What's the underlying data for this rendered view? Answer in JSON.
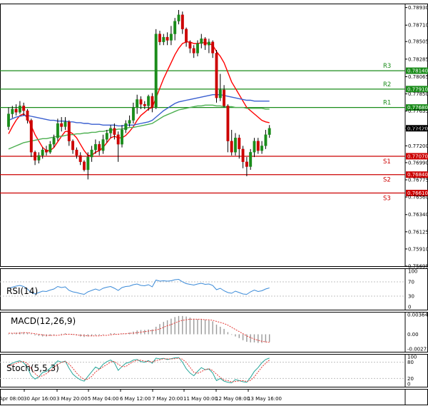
{
  "chart_data": [
    {
      "type": "candlestick",
      "title": "",
      "x_tick_labels": [
        "Apr 08:00",
        "30 Apr 16:00",
        "3 May 20:00",
        "5 May 04:00",
        "6 May 12:00",
        "7 May 20:00",
        "11 May 00:00",
        "12 May 08:00",
        "13 May 16:00"
      ],
      "y_tick_labels": [
        "0.78930",
        "0.78710",
        "0.78505",
        "0.78285",
        "0.78065",
        "0.77850",
        "0.77635",
        "0.77420",
        "0.77200",
        "0.76990",
        "0.76775",
        "0.76560",
        "0.76340",
        "0.76125",
        "0.75910",
        "0.75695"
      ],
      "ylim": [
        0.75695,
        0.7898
      ],
      "current_price": "0.77420",
      "candles": [
        [
          0.7744,
          0.776,
          0.7768,
          0.774
        ],
        [
          0.776,
          0.7766,
          0.777,
          0.7755
        ],
        [
          0.7766,
          0.7762,
          0.7772,
          0.7758
        ],
        [
          0.7762,
          0.777,
          0.7776,
          0.776
        ],
        [
          0.777,
          0.7764,
          0.7774,
          0.7758
        ],
        [
          0.7764,
          0.7752,
          0.7766,
          0.7748
        ],
        [
          0.7752,
          0.7712,
          0.7754,
          0.7706
        ],
        [
          0.7712,
          0.7702,
          0.7714,
          0.7696
        ],
        [
          0.7702,
          0.7708,
          0.7712,
          0.7698
        ],
        [
          0.7708,
          0.7715,
          0.7718,
          0.7704
        ],
        [
          0.7715,
          0.7712,
          0.772,
          0.7708
        ],
        [
          0.7712,
          0.7722,
          0.7726,
          0.771
        ],
        [
          0.7722,
          0.773,
          0.7734,
          0.7718
        ],
        [
          0.773,
          0.7748,
          0.7754,
          0.7726
        ],
        [
          0.7748,
          0.7744,
          0.7756,
          0.7738
        ],
        [
          0.7744,
          0.775,
          0.7756,
          0.774
        ],
        [
          0.775,
          0.7726,
          0.7752,
          0.772
        ],
        [
          0.7726,
          0.7715,
          0.7728,
          0.771
        ],
        [
          0.7715,
          0.7708,
          0.7718,
          0.7704
        ],
        [
          0.7708,
          0.77,
          0.7712,
          0.7696
        ],
        [
          0.77,
          0.769,
          0.7702,
          0.7688
        ],
        [
          0.769,
          0.7706,
          0.7712,
          0.7678
        ],
        [
          0.7706,
          0.7715,
          0.772,
          0.77
        ],
        [
          0.7715,
          0.7722,
          0.7728,
          0.771
        ],
        [
          0.7722,
          0.7714,
          0.7726,
          0.7708
        ],
        [
          0.7714,
          0.7728,
          0.7734,
          0.771
        ],
        [
          0.7728,
          0.7736,
          0.774,
          0.7724
        ],
        [
          0.7736,
          0.7742,
          0.7746,
          0.773
        ],
        [
          0.7742,
          0.7734,
          0.7748,
          0.7728
        ],
        [
          0.7734,
          0.7722,
          0.7738,
          0.77
        ],
        [
          0.7722,
          0.774,
          0.7746,
          0.7718
        ],
        [
          0.774,
          0.7748,
          0.7752,
          0.7736
        ],
        [
          0.7748,
          0.7752,
          0.7758,
          0.7744
        ],
        [
          0.7752,
          0.7768,
          0.7774,
          0.7748
        ],
        [
          0.7768,
          0.7778,
          0.7784,
          0.776
        ],
        [
          0.7778,
          0.7772,
          0.7782,
          0.7766
        ],
        [
          0.7772,
          0.777,
          0.7776,
          0.7766
        ],
        [
          0.777,
          0.7782,
          0.7784,
          0.7764
        ],
        [
          0.7782,
          0.7768,
          0.7786,
          0.7762
        ],
        [
          0.7768,
          0.786,
          0.7866,
          0.7766
        ],
        [
          0.786,
          0.785,
          0.7864,
          0.7846
        ],
        [
          0.785,
          0.7856,
          0.786,
          0.7846
        ],
        [
          0.7856,
          0.7852,
          0.7862,
          0.7846
        ],
        [
          0.7852,
          0.786,
          0.787,
          0.7846
        ],
        [
          0.786,
          0.7876,
          0.788,
          0.7852
        ],
        [
          0.7876,
          0.7884,
          0.789,
          0.7872
        ],
        [
          0.7884,
          0.7866,
          0.7888,
          0.786
        ],
        [
          0.7866,
          0.785,
          0.7868,
          0.7844
        ],
        [
          0.785,
          0.7842,
          0.7852,
          0.7836
        ],
        [
          0.7842,
          0.7836,
          0.7846,
          0.783
        ],
        [
          0.7836,
          0.7848,
          0.7852,
          0.7832
        ],
        [
          0.7848,
          0.7854,
          0.786,
          0.7842
        ],
        [
          0.7854,
          0.7846,
          0.7856,
          0.784
        ],
        [
          0.7846,
          0.785,
          0.7854,
          0.7836
        ],
        [
          0.785,
          0.7836,
          0.7852,
          0.783
        ],
        [
          0.7836,
          0.778,
          0.784,
          0.7774
        ],
        [
          0.778,
          0.779,
          0.781,
          0.7776
        ],
        [
          0.779,
          0.777,
          0.7796,
          0.7768
        ],
        [
          0.777,
          0.7726,
          0.7772,
          0.7712
        ],
        [
          0.7726,
          0.7712,
          0.774,
          0.7708
        ],
        [
          0.7712,
          0.773,
          0.7736,
          0.7708
        ],
        [
          0.773,
          0.7716,
          0.7734,
          0.7704
        ],
        [
          0.7716,
          0.77,
          0.772,
          0.7692
        ],
        [
          0.77,
          0.7694,
          0.7706,
          0.7682
        ],
        [
          0.7694,
          0.7712,
          0.7716,
          0.769
        ],
        [
          0.7712,
          0.7726,
          0.773,
          0.7706
        ],
        [
          0.7726,
          0.7714,
          0.773,
          0.771
        ],
        [
          0.7714,
          0.772,
          0.7726,
          0.771
        ],
        [
          0.772,
          0.7734,
          0.774,
          0.7716
        ],
        [
          0.7734,
          0.7742,
          0.7746,
          0.773
        ]
      ],
      "pivot_levels": [
        {
          "label": "R3",
          "value": "0.78140",
          "color": "#1a8c1a"
        },
        {
          "label": "R2",
          "value": "0.77910",
          "color": "#1a8c1a"
        },
        {
          "label": "R1",
          "value": "0.77680",
          "color": "#1a8c1a"
        },
        {
          "label": "S1",
          "value": "0.77070",
          "color": "#cc0000"
        },
        {
          "label": "S2",
          "value": "0.76840",
          "color": "#cc0000"
        },
        {
          "label": "S3",
          "value": "0.76610",
          "color": "#cc0000"
        }
      ],
      "moving_averages": [
        {
          "color": "#ff0000",
          "values": [
            0.7735,
            0.7744,
            0.7752,
            0.7758,
            0.776,
            0.7755,
            0.7745,
            0.7734,
            0.7726,
            0.7718,
            0.7714,
            0.7714,
            0.7718,
            0.7725,
            0.7732,
            0.7738,
            0.7738,
            0.7735,
            0.773,
            0.7722,
            0.7714,
            0.7708,
            0.7708,
            0.7712,
            0.7714,
            0.7718,
            0.7724,
            0.773,
            0.7732,
            0.773,
            0.773,
            0.7733,
            0.7738,
            0.7744,
            0.7752,
            0.7758,
            0.7762,
            0.7766,
            0.7768,
            0.778,
            0.7792,
            0.7804,
            0.7814,
            0.7824,
            0.7834,
            0.7842,
            0.7848,
            0.785,
            0.785,
            0.7848,
            0.7848,
            0.7849,
            0.7849,
            0.7848,
            0.7846,
            0.7838,
            0.7832,
            0.7824,
            0.7812,
            0.78,
            0.7792,
            0.7784,
            0.7776,
            0.7768,
            0.7764,
            0.776,
            0.7756,
            0.7752,
            0.775,
            0.7749
          ]
        },
        {
          "color": "#3a5fd0",
          "values": [
            0.7752,
            0.7754,
            0.7756,
            0.7757,
            0.7758,
            0.7758,
            0.7757,
            0.7756,
            0.7755,
            0.7754,
            0.7753,
            0.7752,
            0.7752,
            0.7751,
            0.7751,
            0.7751,
            0.775,
            0.775,
            0.7749,
            0.7749,
            0.7748,
            0.7748,
            0.7747,
            0.7747,
            0.7747,
            0.7746,
            0.7746,
            0.7746,
            0.7746,
            0.7745,
            0.7745,
            0.7746,
            0.7746,
            0.7746,
            0.7747,
            0.7748,
            0.7749,
            0.775,
            0.7752,
            0.7756,
            0.776,
            0.7764,
            0.7767,
            0.777,
            0.7773,
            0.7775,
            0.7776,
            0.7777,
            0.7778,
            0.7779,
            0.778,
            0.7781,
            0.7782,
            0.7783,
            0.7784,
            0.7784,
            0.7784,
            0.7783,
            0.7782,
            0.7781,
            0.778,
            0.7779,
            0.7778,
            0.7777,
            0.7777,
            0.7776,
            0.7776,
            0.7776,
            0.7776,
            0.7776
          ]
        },
        {
          "color": "#4caf50",
          "values": [
            0.7716,
            0.7718,
            0.772,
            0.7722,
            0.7724,
            0.7725,
            0.7726,
            0.7727,
            0.7728,
            0.7729,
            0.7729,
            0.773,
            0.7731,
            0.7732,
            0.7732,
            0.7733,
            0.7734,
            0.7734,
            0.7735,
            0.7735,
            0.7736,
            0.7736,
            0.7737,
            0.7737,
            0.7738,
            0.7738,
            0.7739,
            0.774,
            0.774,
            0.7741,
            0.7741,
            0.7742,
            0.7743,
            0.7743,
            0.7744,
            0.7745,
            0.7746,
            0.7747,
            0.7748,
            0.7751,
            0.7754,
            0.7757,
            0.7759,
            0.7761,
            0.7763,
            0.7765,
            0.7766,
            0.7767,
            0.7768,
            0.7769,
            0.777,
            0.777,
            0.7771,
            0.7771,
            0.7771,
            0.777,
            0.777,
            0.7769,
            0.7769,
            0.7769,
            0.7768,
            0.7768,
            0.7768,
            0.7767,
            0.7767,
            0.7767,
            0.7767,
            0.7767,
            0.7766,
            0.7766
          ]
        }
      ]
    },
    {
      "type": "line",
      "name": "RSI(14)",
      "ylim": [
        0,
        100
      ],
      "y_tick_labels": [
        "100",
        "70",
        "30",
        "0"
      ],
      "values": [
        52,
        55,
        58,
        60,
        57,
        50,
        40,
        36,
        40,
        44,
        43,
        47,
        50,
        57,
        54,
        56,
        46,
        42,
        40,
        37,
        35,
        42,
        46,
        50,
        46,
        52,
        55,
        57,
        52,
        46,
        54,
        57,
        58,
        62,
        64,
        60,
        59,
        62,
        56,
        75,
        72,
        73,
        72,
        73,
        76,
        77,
        70,
        65,
        63,
        61,
        64,
        66,
        63,
        64,
        60,
        48,
        52,
        45,
        40,
        38,
        44,
        40,
        36,
        35,
        42,
        47,
        43,
        45,
        50,
        53
      ]
    },
    {
      "type": "bar",
      "name": "MACD(12,26,9)",
      "ylim": [
        -0.002716,
        0.003643
      ],
      "y_tick_labels": [
        "0.003643",
        "0.00",
        "-0.002716"
      ],
      "values": [
        0.0001,
        0.0002,
        0.0003,
        0.0004,
        0.0004,
        0.0003,
        0.0001,
        -0.0002,
        -0.0003,
        -0.0004,
        -0.0004,
        -0.0003,
        -0.0002,
        0.0,
        0.0001,
        0.0002,
        0.0001,
        -0.0001,
        -0.0002,
        -0.0004,
        -0.0005,
        -0.0004,
        -0.0003,
        -0.0002,
        -0.0002,
        -0.0001,
        0.0,
        0.0002,
        0.0002,
        0.0001,
        0.0001,
        0.0002,
        0.0003,
        0.0005,
        0.0007,
        0.0008,
        0.0008,
        0.0009,
        0.0009,
        0.0014,
        0.0019,
        0.0023,
        0.0026,
        0.0029,
        0.0032,
        0.0034,
        0.0034,
        0.0033,
        0.0031,
        0.0029,
        0.0028,
        0.0028,
        0.0027,
        0.0026,
        0.0024,
        0.0018,
        0.0014,
        0.001,
        0.0004,
        -0.0001,
        -0.0004,
        -0.0007,
        -0.0011,
        -0.0014,
        -0.0015,
        -0.0015,
        -0.0016,
        -0.0016,
        -0.0015,
        -0.0014
      ],
      "signal": [
        0.0002,
        0.0002,
        0.0002,
        0.0002,
        0.0003,
        0.0003,
        0.0002,
        0.0001,
        0.0,
        -0.0001,
        -0.0002,
        -0.0002,
        -0.0002,
        -0.0002,
        -0.0001,
        0.0,
        0.0,
        0.0,
        -0.0001,
        -0.0002,
        -0.0002,
        -0.0003,
        -0.0003,
        -0.0003,
        -0.0003,
        -0.0002,
        -0.0002,
        -0.0001,
        0.0,
        0.0,
        0.0001,
        0.0001,
        0.0002,
        0.0002,
        0.0003,
        0.0004,
        0.0005,
        0.0006,
        0.0007,
        0.0008,
        0.001,
        0.0013,
        0.0016,
        0.0018,
        0.0021,
        0.0024,
        0.0026,
        0.0027,
        0.0028,
        0.0028,
        0.0028,
        0.0028,
        0.0027,
        0.0027,
        0.0026,
        0.0024,
        0.0022,
        0.002,
        0.0017,
        0.0013,
        0.0009,
        0.0005,
        0.0001,
        -0.0003,
        -0.0006,
        -0.0009,
        -0.0011,
        -0.0013,
        -0.0014,
        -0.0015
      ]
    },
    {
      "type": "line",
      "name": "Stoch(5,5,3)",
      "ylim": [
        0,
        100
      ],
      "y_tick_labels": [
        "100",
        "80",
        "20",
        "0"
      ],
      "k_values": [
        70,
        76,
        82,
        85,
        78,
        60,
        30,
        18,
        26,
        42,
        46,
        58,
        70,
        85,
        80,
        84,
        58,
        36,
        24,
        15,
        10,
        28,
        45,
        62,
        55,
        72,
        82,
        88,
        78,
        50,
        64,
        76,
        80,
        88,
        90,
        82,
        80,
        86,
        76,
        95,
        92,
        94,
        90,
        93,
        96,
        97,
        80,
        56,
        40,
        30,
        46,
        60,
        52,
        55,
        40,
        12,
        20,
        10,
        6,
        4,
        16,
        12,
        8,
        6,
        24,
        46,
        60,
        78,
        90,
        95
      ],
      "d_values": [
        66,
        71,
        76,
        81,
        82,
        75,
        58,
        38,
        26,
        30,
        38,
        49,
        59,
        72,
        79,
        83,
        73,
        58,
        40,
        26,
        16,
        18,
        28,
        44,
        54,
        63,
        71,
        81,
        83,
        72,
        64,
        64,
        74,
        82,
        87,
        87,
        84,
        83,
        81,
        86,
        89,
        93,
        92,
        92,
        93,
        95,
        91,
        79,
        61,
        43,
        39,
        45,
        53,
        56,
        49,
        36,
        24,
        14,
        12,
        7,
        9,
        11,
        12,
        9,
        13,
        26,
        44,
        62,
        76,
        88
      ]
    }
  ]
}
